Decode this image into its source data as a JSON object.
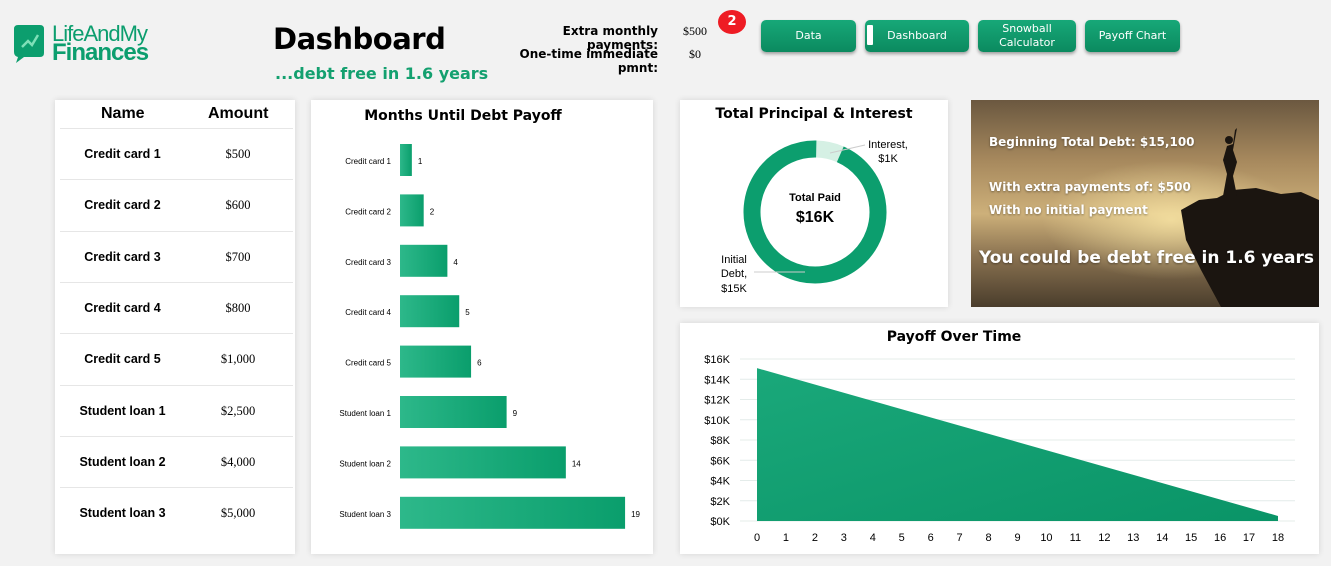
{
  "brand": {
    "line1": "LifeAndMy",
    "line2": "Finances"
  },
  "header": {
    "title": "Dashboard",
    "subtitle": "...debt free in 1.6 years"
  },
  "inputs": {
    "extra_label": "Extra monthly payments:",
    "extra_value": "$500",
    "onetime_label": "One-time immediate pmnt:",
    "onetime_value": "$0",
    "badge": "2"
  },
  "nav": [
    {
      "label": "Data"
    },
    {
      "label": "Dashboard",
      "selected": true
    },
    {
      "label": "Snowball Calculator"
    },
    {
      "label": "Payoff Chart"
    }
  ],
  "debt_table": {
    "headers": [
      "Name",
      "Amount"
    ],
    "rows": [
      {
        "name": "Credit card 1",
        "amount": "$500"
      },
      {
        "name": "Credit card 2",
        "amount": "$600"
      },
      {
        "name": "Credit card 3",
        "amount": "$700"
      },
      {
        "name": "Credit card 4",
        "amount": "$800"
      },
      {
        "name": "Credit card 5",
        "amount": "$1,000"
      },
      {
        "name": "Student loan 1",
        "amount": "$2,500"
      },
      {
        "name": "Student loan 2",
        "amount": "$4,000"
      },
      {
        "name": "Student loan 3",
        "amount": "$5,000"
      }
    ]
  },
  "donut": {
    "title": "Total Principal & Interest",
    "center_label": "Total Paid",
    "center_value": "$16K",
    "interest_label_1": "Interest,",
    "interest_label_2": "$1K",
    "principal_label_1": "Initial",
    "principal_label_2": "Debt,",
    "principal_label_3": "$15K"
  },
  "summary": {
    "line1": "Beginning Total Debt: $15,100",
    "line2": "With extra payments of: $500",
    "line3": "With no initial payment",
    "line4": "You could be debt free in 1.6 years"
  },
  "colors": {
    "accent": "#0c9e6e",
    "badge": "#ee1c24"
  },
  "chart_data": [
    {
      "type": "bar",
      "title": "Months Until Debt Payoff",
      "orientation": "horizontal",
      "categories": [
        "Credit card 1",
        "Credit card 2",
        "Credit card 3",
        "Credit card 4",
        "Credit card 5",
        "Student loan 1",
        "Student loan 2",
        "Student loan 3"
      ],
      "values": [
        1,
        2,
        4,
        5,
        6,
        9,
        14,
        19
      ],
      "xlim": [
        0,
        19.5
      ]
    },
    {
      "type": "pie",
      "title": "Total Principal & Interest",
      "categories": [
        "Interest",
        "Initial Debt"
      ],
      "values": [
        1,
        15
      ],
      "legend_position": "none"
    },
    {
      "type": "area",
      "title": "Payoff Over Time",
      "x": [
        0,
        18
      ],
      "values": [
        15100,
        500
      ],
      "xticks": [
        "0",
        "1",
        "2",
        "3",
        "4",
        "5",
        "6",
        "7",
        "8",
        "9",
        "10",
        "11",
        "12",
        "13",
        "14",
        "15",
        "16",
        "17",
        "18"
      ],
      "yticks": [
        "$0K",
        "$2K",
        "$4K",
        "$6K",
        "$8K",
        "$10K",
        "$12K",
        "$14K",
        "$16K"
      ],
      "ylim": [
        0,
        16000
      ],
      "xlim": [
        0,
        18
      ],
      "grid": true
    }
  ]
}
